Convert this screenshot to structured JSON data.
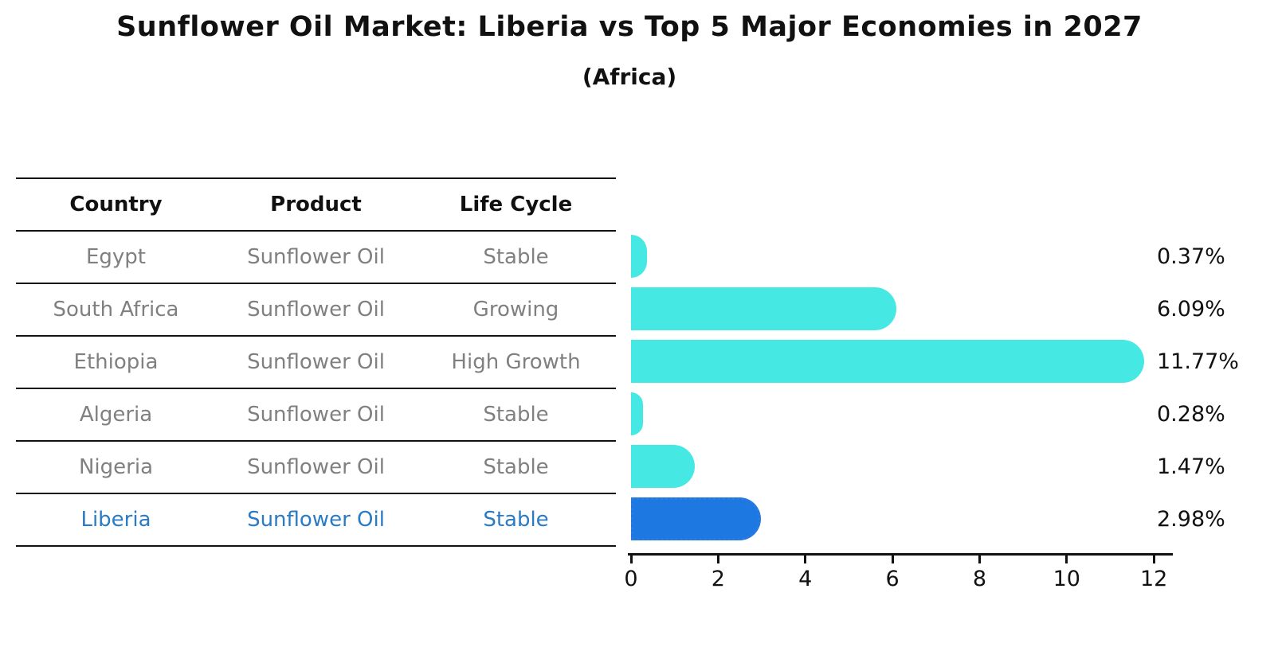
{
  "title": "Sunflower Oil Market: Liberia vs Top 5 Major Economies in 2027",
  "subtitle": "(Africa)",
  "table": {
    "columns": [
      "Country",
      "Product",
      "Life Cycle"
    ],
    "rows": [
      {
        "country": "Egypt",
        "product": "Sunflower Oil",
        "life_cycle": "Stable",
        "highlight": false
      },
      {
        "country": "South Africa",
        "product": "Sunflower Oil",
        "life_cycle": "Growing",
        "highlight": false
      },
      {
        "country": "Ethiopia",
        "product": "Sunflower Oil",
        "life_cycle": "High Growth",
        "highlight": false
      },
      {
        "country": "Algeria",
        "product": "Sunflower Oil",
        "life_cycle": "Stable",
        "highlight": false
      },
      {
        "country": "Nigeria",
        "product": "Sunflower Oil",
        "life_cycle": "Stable",
        "highlight": false
      },
      {
        "country": "Liberia",
        "product": "Sunflower Oil",
        "life_cycle": "Stable",
        "highlight": true
      }
    ]
  },
  "chart_data": {
    "type": "bar",
    "orientation": "horizontal",
    "title": "Sunflower Oil Market: Liberia vs Top 5 Major Economies in 2027",
    "subtitle": "(Africa)",
    "categories": [
      "Egypt",
      "South Africa",
      "Ethiopia",
      "Algeria",
      "Nigeria",
      "Liberia"
    ],
    "values": [
      0.37,
      6.09,
      11.77,
      0.28,
      1.47,
      2.98
    ],
    "value_labels": [
      "0.37%",
      "6.09%",
      "11.77%",
      "0.28%",
      "1.47%",
      "2.98%"
    ],
    "highlight_category": "Liberia",
    "x_ticks": [
      0,
      2,
      4,
      6,
      8,
      10,
      12
    ],
    "xlim": [
      0,
      12.4
    ],
    "grid": false,
    "legend": false,
    "colors": {
      "bar": "#45E8E3",
      "highlight_bar": "#1E78E1",
      "highlight_border": "#2B7BE0",
      "highlight_text": "#2B7BC4",
      "table_text": "#808080",
      "header_text": "#111111",
      "value_label_text": "#111111",
      "axis": "#111111"
    }
  }
}
